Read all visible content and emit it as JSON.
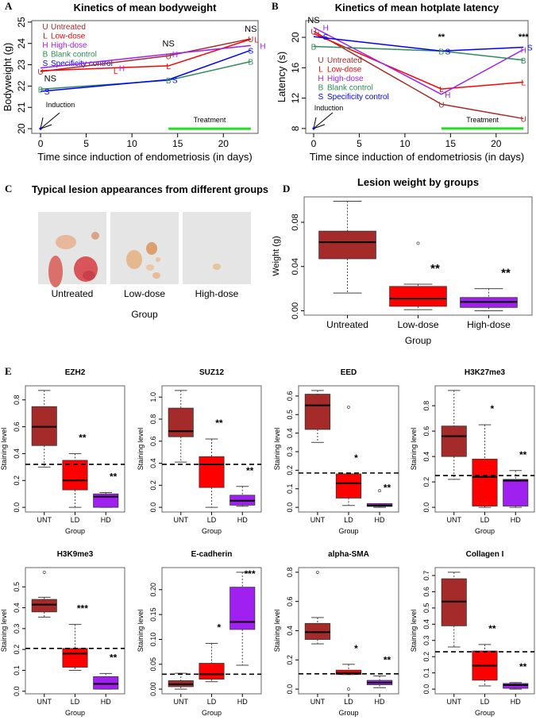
{
  "panel_labels": {
    "a": "A",
    "b": "B",
    "c": "C",
    "d": "D",
    "e": "E"
  },
  "panel_c": {
    "title": "Typical lesion appearances from different groups",
    "groups": [
      "Untreated",
      "Low-dose",
      "High-dose"
    ],
    "xlabel": "Group"
  },
  "chart_data": [
    {
      "type": "line",
      "title": "Kinetics of mean bodyweight",
      "xlabel": "Time since induction of endometriosis (in days)",
      "ylabel": "Bodyweight (g)",
      "xlim": [
        -0.96,
        23.8
      ],
      "ylim": [
        19.78,
        25.07
      ],
      "xticks": [
        0,
        5,
        10,
        15,
        20
      ],
      "xtick_labels": [
        "0",
        "5",
        "10",
        "15",
        "20"
      ],
      "yticks": [
        20,
        21,
        22,
        23,
        24,
        25
      ],
      "ytick_labels": [
        "20",
        "21",
        "22",
        "23",
        "24",
        "25"
      ],
      "x": [
        0,
        14,
        23
      ],
      "series": [
        {
          "name": "Untreated",
          "marker": "U",
          "color": "#a52a2a",
          "values": [
            22.68,
            23.42,
            24.22
          ]
        },
        {
          "name": "Low-dose",
          "marker": "L",
          "color": "#ff0000",
          "values": [
            22.72,
            22.95,
            24.2
          ]
        },
        {
          "name": "High-dose",
          "marker": "H",
          "color": "#a020f0",
          "values": [
            22.85,
            23.5,
            23.9
          ]
        },
        {
          "name": "Blank control",
          "marker": "B",
          "color": "#2e8b57",
          "values": [
            21.85,
            22.27,
            23.15
          ]
        },
        {
          "name": "Specificity control",
          "marker": "S",
          "color": "#0000ff",
          "values": [
            21.75,
            22.3,
            23.68
          ]
        }
      ],
      "annotations": [
        {
          "x": 0,
          "y": 22.22,
          "text": "NS"
        },
        {
          "x": 14,
          "y": 23.85,
          "text": "NS"
        },
        {
          "x": 23,
          "y": 24.55,
          "text": "NS"
        }
      ],
      "induction": {
        "label": "Induction",
        "x": 0,
        "y": 20
      },
      "treatment": {
        "label": "Treatment",
        "from": 14,
        "to": 23,
        "color": "#22dd22"
      },
      "legend": "top-left"
    },
    {
      "type": "line",
      "title": "Kinetics of mean hotplate latency",
      "xlabel": "Time since induction of endometriosis (in days)",
      "ylabel": "Latency (s)",
      "xlim": [
        -0.87,
        23.5
      ],
      "ylim": [
        7.36,
        22.2
      ],
      "xticks": [
        0,
        5,
        10,
        15,
        20
      ],
      "xtick_labels": [
        "0",
        "5",
        "10",
        "15",
        "20"
      ],
      "yticks": [
        8,
        12,
        16,
        20
      ],
      "ytick_labels": [
        "8",
        "12",
        "16",
        "20"
      ],
      "x": [
        0,
        14,
        23
      ],
      "series": [
        {
          "name": "Untreated",
          "marker": "U",
          "color": "#a52a2a",
          "values": [
            20.8,
            11.2,
            9.3
          ]
        },
        {
          "name": "Low-dose",
          "marker": "L",
          "color": "#ff0000",
          "values": [
            20.5,
            13.2,
            14.1
          ]
        },
        {
          "name": "High-dose",
          "marker": "H",
          "color": "#a020f0",
          "values": [
            21.3,
            12.5,
            18.4
          ]
        },
        {
          "name": "Blank control",
          "marker": "B",
          "color": "#2e8b57",
          "values": [
            18.8,
            18.2,
            17.0
          ]
        },
        {
          "name": "Specificity control",
          "marker": "S",
          "color": "#0000ff",
          "values": [
            20.1,
            18.2,
            18.7
          ]
        }
      ],
      "annotations": [
        {
          "x": 0,
          "y": 21.9,
          "text": "NS"
        },
        {
          "x": 14,
          "y": 19.7,
          "text": "**"
        },
        {
          "x": 23,
          "y": 19.7,
          "text": "***"
        }
      ],
      "induction": {
        "label": "Induction",
        "x": 0,
        "y": 8
      },
      "treatment": {
        "label": "Treatment",
        "from": 14,
        "to": 23,
        "color": "#22dd22"
      },
      "legend": "center-left"
    },
    {
      "type": "box",
      "title": "Lesion weight by groups",
      "xlabel": "Group",
      "ylabel": "Weight (g)",
      "categories": [
        "Untreated",
        "Low-dose",
        "High-dose"
      ],
      "yticks": [
        0,
        0.04,
        0.08
      ],
      "ytick_labels": [
        "0.00",
        "0.04",
        "0.08"
      ],
      "groups": [
        {
          "min": 0.016,
          "q1": 0.047,
          "median": 0.062,
          "q3": 0.072,
          "max": 0.099,
          "outliers": [],
          "sig": "",
          "color": "#a52a2a"
        },
        {
          "min": 0.001,
          "q1": 0.004,
          "median": 0.011,
          "q3": 0.022,
          "max": 0.024,
          "outliers": [
            0.061
          ],
          "sig": "**",
          "color": "#ff0000"
        },
        {
          "min": 0.0,
          "q1": 0.003,
          "median": 0.008,
          "q3": 0.012,
          "max": 0.02,
          "outliers": [],
          "sig": "**",
          "color": "#a020f0"
        }
      ]
    },
    {
      "type": "box",
      "title": "EZH2",
      "xlabel": "Group",
      "ylabel": "Staining level",
      "categories": [
        "UNT",
        "LD",
        "HD"
      ],
      "yticks": [
        0,
        0.2,
        0.4,
        0.6,
        0.8
      ],
      "ytick_labels": [
        "0.0",
        "0.2",
        "0.4",
        "0.6",
        "0.8"
      ],
      "reference_line": 0.32,
      "groups": [
        {
          "min": 0.3,
          "q1": 0.46,
          "median": 0.6,
          "q3": 0.75,
          "max": 0.87,
          "outliers": [],
          "sig": "",
          "color": "#a52a2a"
        },
        {
          "min": 0.0,
          "q1": 0.13,
          "median": 0.2,
          "q3": 0.35,
          "max": 0.4,
          "outliers": [],
          "sig": "**",
          "color": "#ff0000"
        },
        {
          "min": 0.0,
          "q1": 0.0,
          "median": 0.08,
          "q3": 0.1,
          "max": 0.11,
          "outliers": [],
          "sig": "**",
          "color": "#a020f0"
        }
      ]
    },
    {
      "type": "box",
      "title": "SUZ12",
      "xlabel": "Group",
      "ylabel": "Staining level",
      "categories": [
        "UNT",
        "LD",
        "HD"
      ],
      "yticks": [
        0,
        0.2,
        0.4,
        0.6,
        0.8,
        1.0
      ],
      "ytick_labels": [
        "0.0",
        "0.2",
        "0.4",
        "0.6",
        "0.8",
        "1.0"
      ],
      "reference_line": 0.39,
      "groups": [
        {
          "min": 0.41,
          "q1": 0.64,
          "median": 0.69,
          "q3": 0.9,
          "max": 1.06,
          "outliers": [],
          "sig": "",
          "color": "#a52a2a"
        },
        {
          "min": 0.0,
          "q1": 0.18,
          "median": 0.39,
          "q3": 0.46,
          "max": 0.62,
          "outliers": [],
          "sig": "**",
          "color": "#ff0000"
        },
        {
          "min": 0.01,
          "q1": 0.02,
          "median": 0.06,
          "q3": 0.11,
          "max": 0.19,
          "outliers": [],
          "sig": "**",
          "color": "#a020f0"
        }
      ]
    },
    {
      "type": "box",
      "title": "EED",
      "xlabel": "Group",
      "ylabel": "Staining level",
      "categories": [
        "UNT",
        "LD",
        "HD"
      ],
      "yticks": [
        0,
        0.1,
        0.2,
        0.3,
        0.4,
        0.5,
        0.6
      ],
      "ytick_labels": [
        "0.0",
        "0.1",
        "0.2",
        "0.3",
        "0.4",
        "0.5",
        "0.6"
      ],
      "reference_line": 0.185,
      "groups": [
        {
          "min": 0.35,
          "q1": 0.42,
          "median": 0.55,
          "q3": 0.61,
          "max": 0.63,
          "outliers": [],
          "sig": "",
          "color": "#a52a2a"
        },
        {
          "min": 0.01,
          "q1": 0.05,
          "median": 0.13,
          "q3": 0.18,
          "max": 0.18,
          "outliers": [
            0.54
          ],
          "sig": "*",
          "color": "#ff0000"
        },
        {
          "min": 0.0,
          "q1": 0.005,
          "median": 0.01,
          "q3": 0.02,
          "max": 0.02,
          "outliers": [
            0.09
          ],
          "sig": "**",
          "color": "#a020f0"
        }
      ]
    },
    {
      "type": "box",
      "title": "H3K27me3",
      "xlabel": "Group",
      "ylabel": "Staining level",
      "categories": [
        "UNT",
        "LD",
        "HD"
      ],
      "yticks": [
        0,
        0.2,
        0.4,
        0.6,
        0.8
      ],
      "ytick_labels": [
        "0.0",
        "0.2",
        "0.4",
        "0.6",
        "0.8"
      ],
      "reference_line": 0.25,
      "groups": [
        {
          "min": 0.22,
          "q1": 0.4,
          "median": 0.56,
          "q3": 0.64,
          "max": 0.92,
          "outliers": [],
          "sig": "",
          "color": "#a52a2a"
        },
        {
          "min": 0.0,
          "q1": 0.01,
          "median": 0.24,
          "q3": 0.38,
          "max": 0.65,
          "outliers": [],
          "sig": "*",
          "color": "#ff0000"
        },
        {
          "min": 0.0,
          "q1": 0.01,
          "median": 0.21,
          "q3": 0.22,
          "max": 0.29,
          "outliers": [],
          "sig": "**",
          "color": "#a020f0"
        }
      ]
    },
    {
      "type": "box",
      "title": "H3K9me3",
      "xlabel": "Group",
      "ylabel": "Staining level",
      "categories": [
        "UNT",
        "LD",
        "HD"
      ],
      "yticks": [
        0,
        0.1,
        0.2,
        0.3,
        0.4,
        0.5
      ],
      "ytick_labels": [
        "0.0",
        "0.1",
        "0.2",
        "0.3",
        "0.4",
        "0.5"
      ],
      "reference_line": 0.205,
      "groups": [
        {
          "min": 0.355,
          "q1": 0.38,
          "median": 0.415,
          "q3": 0.44,
          "max": 0.45,
          "outliers": [
            0.57
          ],
          "sig": "",
          "color": "#a52a2a"
        },
        {
          "min": 0.1,
          "q1": 0.115,
          "median": 0.18,
          "q3": 0.205,
          "max": 0.32,
          "outliers": [],
          "sig": "***",
          "color": "#ff0000"
        },
        {
          "min": 0.01,
          "q1": 0.01,
          "median": 0.035,
          "q3": 0.07,
          "max": 0.085,
          "outliers": [],
          "sig": "**",
          "color": "#a020f0"
        }
      ]
    },
    {
      "type": "box",
      "title": "E-cadherin",
      "xlabel": "Group",
      "ylabel": "Staining level",
      "categories": [
        "UNT",
        "LD",
        "HD"
      ],
      "yticks": [
        0,
        0.05,
        0.1,
        0.15,
        0.2
      ],
      "ytick_labels": [
        "0.00",
        "0.05",
        "0.10",
        "0.15",
        "0.20"
      ],
      "reference_line": 0.03,
      "groups": [
        {
          "min": 0.0,
          "q1": 0.005,
          "median": 0.01,
          "q3": 0.017,
          "max": 0.032,
          "outliers": [],
          "sig": "",
          "color": "#a52a2a"
        },
        {
          "min": 0.015,
          "q1": 0.02,
          "median": 0.03,
          "q3": 0.052,
          "max": 0.092,
          "outliers": [],
          "sig": "*",
          "color": "#ff0000"
        },
        {
          "min": 0.048,
          "q1": 0.12,
          "median": 0.135,
          "q3": 0.205,
          "max": 0.235,
          "outliers": [],
          "sig": "***",
          "color": "#a020f0"
        }
      ]
    },
    {
      "type": "box",
      "title": "alpha-SMA",
      "xlabel": "Group",
      "ylabel": "Staining level",
      "categories": [
        "UNT",
        "LD",
        "HD"
      ],
      "yticks": [
        0,
        0.2,
        0.4,
        0.6,
        0.8
      ],
      "ytick_labels": [
        "0.0",
        "0.2",
        "0.4",
        "0.6",
        "0.8"
      ],
      "reference_line": 0.105,
      "groups": [
        {
          "min": 0.31,
          "q1": 0.34,
          "median": 0.39,
          "q3": 0.45,
          "max": 0.49,
          "outliers": [
            0.8
          ],
          "sig": "",
          "color": "#a52a2a"
        },
        {
          "min": 0.1,
          "q1": 0.1,
          "median": 0.11,
          "q3": 0.13,
          "max": 0.17,
          "outliers": [
            0.0
          ],
          "sig": "*",
          "color": "#ff0000"
        },
        {
          "min": 0.01,
          "q1": 0.03,
          "median": 0.045,
          "q3": 0.06,
          "max": 0.09,
          "outliers": [],
          "sig": "**",
          "color": "#a020f0"
        }
      ]
    },
    {
      "type": "box",
      "title": "Collagen I",
      "xlabel": "Group",
      "ylabel": "Staining level",
      "categories": [
        "UNT",
        "LD",
        "HD"
      ],
      "yticks": [
        0,
        0.1,
        0.2,
        0.3,
        0.4,
        0.5,
        0.6,
        0.7
      ],
      "ytick_labels": [
        "0.0",
        "0.1",
        "0.2",
        "0.3",
        "0.4",
        "0.5",
        "0.6",
        "0.7"
      ],
      "reference_line": 0.23,
      "groups": [
        {
          "min": 0.26,
          "q1": 0.39,
          "median": 0.54,
          "q3": 0.68,
          "max": 0.72,
          "outliers": [],
          "sig": "",
          "color": "#a52a2a"
        },
        {
          "min": 0.02,
          "q1": 0.055,
          "median": 0.145,
          "q3": 0.235,
          "max": 0.275,
          "outliers": [],
          "sig": "**",
          "color": "#ff0000"
        },
        {
          "min": 0.0,
          "q1": 0.005,
          "median": 0.025,
          "q3": 0.035,
          "max": 0.04,
          "outliers": [],
          "sig": "**",
          "color": "#a020f0"
        }
      ]
    }
  ]
}
